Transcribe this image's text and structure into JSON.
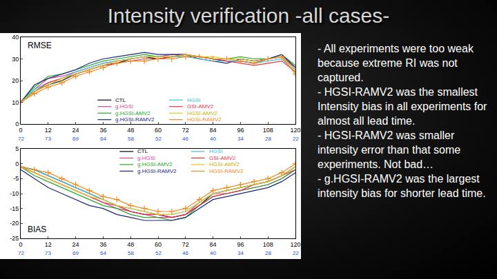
{
  "slide_title": "Intensity verification -all cases-",
  "bullets": [
    "- All experiments were too weak because extreme RI was not captured.",
    "- HGSI-RAMV2 was the smallest Intensity bias in all experiments for almost all lead time.",
    "- HGSI-RAMV2 was smaller intensity error than that some experiments. Not bad…",
    "- g.HGSI-RAMV2 was the largest intensity bias for shorter lead time."
  ],
  "chart_data": [
    {
      "type": "line",
      "title": "RMSE",
      "x": [
        0,
        6,
        12,
        18,
        24,
        30,
        36,
        42,
        48,
        54,
        60,
        66,
        72,
        78,
        84,
        90,
        96,
        102,
        108,
        114,
        120
      ],
      "xlim": [
        0,
        120
      ],
      "xticks": [
        0,
        12,
        24,
        36,
        48,
        60,
        72,
        84,
        96,
        108,
        120
      ],
      "case_counts": [
        72,
        73,
        69,
        64,
        58,
        52,
        46,
        40,
        34,
        28,
        22
      ],
      "ylim": [
        0,
        40
      ],
      "yticks": [
        0,
        10,
        20,
        30,
        40
      ],
      "grid": false,
      "legend": "bottom",
      "series": [
        {
          "name": "CTL",
          "color": "#000000",
          "values": [
            10,
            15,
            18,
            20,
            23,
            25,
            27,
            28,
            30,
            31,
            30,
            31,
            32,
            31,
            30,
            29,
            29,
            28,
            30,
            31,
            25
          ]
        },
        {
          "name": "g.HGSI",
          "color": "#e0409a",
          "values": [
            10,
            16,
            21,
            22,
            24,
            26,
            28,
            29,
            30,
            31,
            31,
            32,
            32,
            31,
            30,
            30,
            30,
            29,
            30,
            31,
            26
          ]
        },
        {
          "name": "g.HGSI-AMV2",
          "color": "#22aa22",
          "values": [
            10,
            17,
            22,
            23,
            25,
            27,
            29,
            30,
            31,
            32,
            31,
            31,
            31,
            31,
            30,
            30,
            31,
            30,
            30,
            32,
            27
          ]
        },
        {
          "name": "g.HGSI-RAMV2",
          "color": "#1a237e",
          "values": [
            10,
            18,
            21,
            23,
            25,
            28,
            30,
            31,
            32,
            33,
            32,
            32,
            32,
            30,
            29,
            28,
            30,
            29,
            30,
            32,
            26
          ]
        },
        {
          "name": "HGSI",
          "color": "#35c4d8",
          "values": [
            10,
            16,
            19,
            21,
            24,
            26,
            28,
            29,
            30,
            31,
            31,
            31,
            31,
            30,
            29,
            29,
            29,
            28,
            29,
            30,
            24
          ]
        },
        {
          "name": "GSI-AMV2",
          "color": "#e8324a",
          "values": [
            10,
            15,
            19,
            21,
            23,
            25,
            27,
            28,
            29,
            30,
            30,
            31,
            32,
            31,
            30,
            29,
            28,
            27,
            28,
            29,
            24
          ]
        },
        {
          "name": "HGSI-AMV2",
          "color": "#e0c820",
          "values": [
            10,
            15,
            18,
            21,
            23,
            25,
            27,
            29,
            30,
            31,
            31,
            31,
            32,
            31,
            31,
            30,
            30,
            29,
            30,
            31,
            25
          ]
        },
        {
          "name": "HGSI-RAMV2",
          "color": "#f08a1e",
          "marker": "cross",
          "values": [
            10,
            14,
            17,
            19,
            22,
            24,
            26,
            28,
            29,
            29,
            30,
            30,
            31,
            31,
            30,
            30,
            29,
            28,
            30,
            31,
            23
          ]
        }
      ]
    },
    {
      "type": "line",
      "title": "BIAS",
      "x": [
        0,
        6,
        12,
        18,
        24,
        30,
        36,
        42,
        48,
        54,
        60,
        66,
        72,
        78,
        84,
        90,
        96,
        102,
        108,
        114,
        120
      ],
      "xlim": [
        0,
        120
      ],
      "xticks": [
        0,
        12,
        24,
        36,
        48,
        60,
        72,
        84,
        96,
        108,
        120
      ],
      "case_counts": [
        72,
        73,
        69,
        64,
        58,
        52,
        46,
        40,
        34,
        28,
        22
      ],
      "ylim": [
        -25,
        5
      ],
      "yticks": [
        -25,
        -20,
        -15,
        -10,
        -5,
        0,
        5
      ],
      "grid": false,
      "legend": "top",
      "series": [
        {
          "name": "CTL",
          "color": "#000000",
          "values": [
            -1,
            -2,
            -4,
            -6,
            -8,
            -10,
            -12,
            -14,
            -16,
            -17,
            -17,
            -18,
            -17,
            -14,
            -10,
            -9,
            -8,
            -7,
            -6,
            -4,
            -1
          ]
        },
        {
          "name": "g.HGSI",
          "color": "#e0409a",
          "values": [
            -1,
            -3,
            -5,
            -7,
            -9,
            -11,
            -13,
            -15,
            -16,
            -17,
            -18,
            -18,
            -17,
            -13,
            -10,
            -10,
            -9,
            -8,
            -7,
            -5,
            -2
          ]
        },
        {
          "name": "g.HGSI-AMV2",
          "color": "#22aa22",
          "values": [
            -1,
            -4,
            -6,
            -8,
            -10,
            -12,
            -14,
            -15,
            -17,
            -18,
            -18,
            -19,
            -18,
            -14,
            -11,
            -10,
            -9,
            -8,
            -7,
            -5,
            -2
          ]
        },
        {
          "name": "g.HGSI-RAMV2",
          "color": "#1a237e",
          "values": [
            -2,
            -5,
            -8,
            -10,
            -12,
            -14,
            -15,
            -17,
            -18,
            -19,
            -19,
            -19,
            -18,
            -15,
            -12,
            -11,
            -10,
            -9,
            -8,
            -6,
            -3
          ]
        },
        {
          "name": "HGSI",
          "color": "#35c4d8",
          "values": [
            -1,
            -2,
            -4,
            -6,
            -8,
            -10,
            -12,
            -14,
            -15,
            -16,
            -17,
            -17,
            -16,
            -13,
            -10,
            -9,
            -8,
            -7,
            -6,
            -4,
            -1
          ]
        },
        {
          "name": "GSI-AMV2",
          "color": "#e8324a",
          "values": [
            -1,
            -3,
            -5,
            -7,
            -9,
            -11,
            -13,
            -14,
            -16,
            -17,
            -17,
            -18,
            -17,
            -14,
            -11,
            -10,
            -9,
            -7,
            -6,
            -4,
            -2
          ]
        },
        {
          "name": "HGSI-AMV2",
          "color": "#e0c820",
          "values": [
            -1,
            -3,
            -5,
            -7,
            -9,
            -11,
            -12,
            -14,
            -15,
            -16,
            -17,
            -17,
            -16,
            -13,
            -10,
            -9,
            -8,
            -7,
            -6,
            -4,
            -1
          ]
        },
        {
          "name": "HGSI-RAMV2",
          "color": "#f08a1e",
          "marker": "cross",
          "values": [
            -1,
            -2,
            -3,
            -5,
            -7,
            -9,
            -11,
            -12,
            -14,
            -15,
            -16,
            -16,
            -15,
            -12,
            -9,
            -8,
            -7,
            -6,
            -5,
            -3,
            0
          ]
        }
      ]
    }
  ]
}
